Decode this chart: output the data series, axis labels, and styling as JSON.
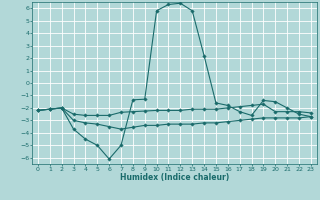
{
  "title": "",
  "xlabel": "Humidex (Indice chaleur)",
  "xlim": [
    -0.5,
    23.5
  ],
  "ylim": [
    -6.5,
    6.5
  ],
  "xticks": [
    0,
    1,
    2,
    3,
    4,
    5,
    6,
    7,
    8,
    9,
    10,
    11,
    12,
    13,
    14,
    15,
    16,
    17,
    18,
    19,
    20,
    21,
    22,
    23
  ],
  "yticks": [
    -6,
    -5,
    -4,
    -3,
    -2,
    -1,
    0,
    1,
    2,
    3,
    4,
    5,
    6
  ],
  "bg_color": "#b2d8d8",
  "line_color": "#1a6b6b",
  "grid_color": "#ffffff",
  "line1_x": [
    0,
    1,
    2,
    3,
    4,
    5,
    6,
    7,
    8,
    9,
    10,
    11,
    12,
    13,
    14,
    15,
    16,
    17,
    18,
    19,
    20,
    21,
    22,
    23
  ],
  "line1_y": [
    -2.2,
    -2.1,
    -2.0,
    -3.7,
    -4.5,
    -5.0,
    -6.1,
    -5.0,
    -1.35,
    -1.3,
    5.8,
    6.3,
    6.4,
    5.8,
    2.2,
    -1.6,
    -1.8,
    -2.3,
    -2.6,
    -1.4,
    -1.5,
    -2.0,
    -2.5,
    -2.7
  ],
  "line2_x": [
    0,
    1,
    2,
    3,
    4,
    5,
    6,
    7,
    8,
    9,
    10,
    11,
    12,
    13,
    14,
    15,
    16,
    17,
    18,
    19,
    20,
    21,
    22,
    23
  ],
  "line2_y": [
    -2.2,
    -2.1,
    -2.0,
    -2.5,
    -2.6,
    -2.6,
    -2.6,
    -2.35,
    -2.3,
    -2.25,
    -2.2,
    -2.2,
    -2.2,
    -2.1,
    -2.1,
    -2.1,
    -2.0,
    -1.9,
    -1.8,
    -1.7,
    -2.3,
    -2.3,
    -2.3,
    -2.4
  ],
  "line3_x": [
    0,
    1,
    2,
    3,
    4,
    5,
    6,
    7,
    8,
    9,
    10,
    11,
    12,
    13,
    14,
    15,
    16,
    17,
    18,
    19,
    20,
    21,
    22,
    23
  ],
  "line3_y": [
    -2.2,
    -2.1,
    -2.0,
    -3.0,
    -3.2,
    -3.3,
    -3.5,
    -3.7,
    -3.55,
    -3.4,
    -3.4,
    -3.3,
    -3.3,
    -3.3,
    -3.2,
    -3.2,
    -3.1,
    -3.0,
    -2.9,
    -2.8,
    -2.8,
    -2.8,
    -2.8,
    -2.7
  ]
}
